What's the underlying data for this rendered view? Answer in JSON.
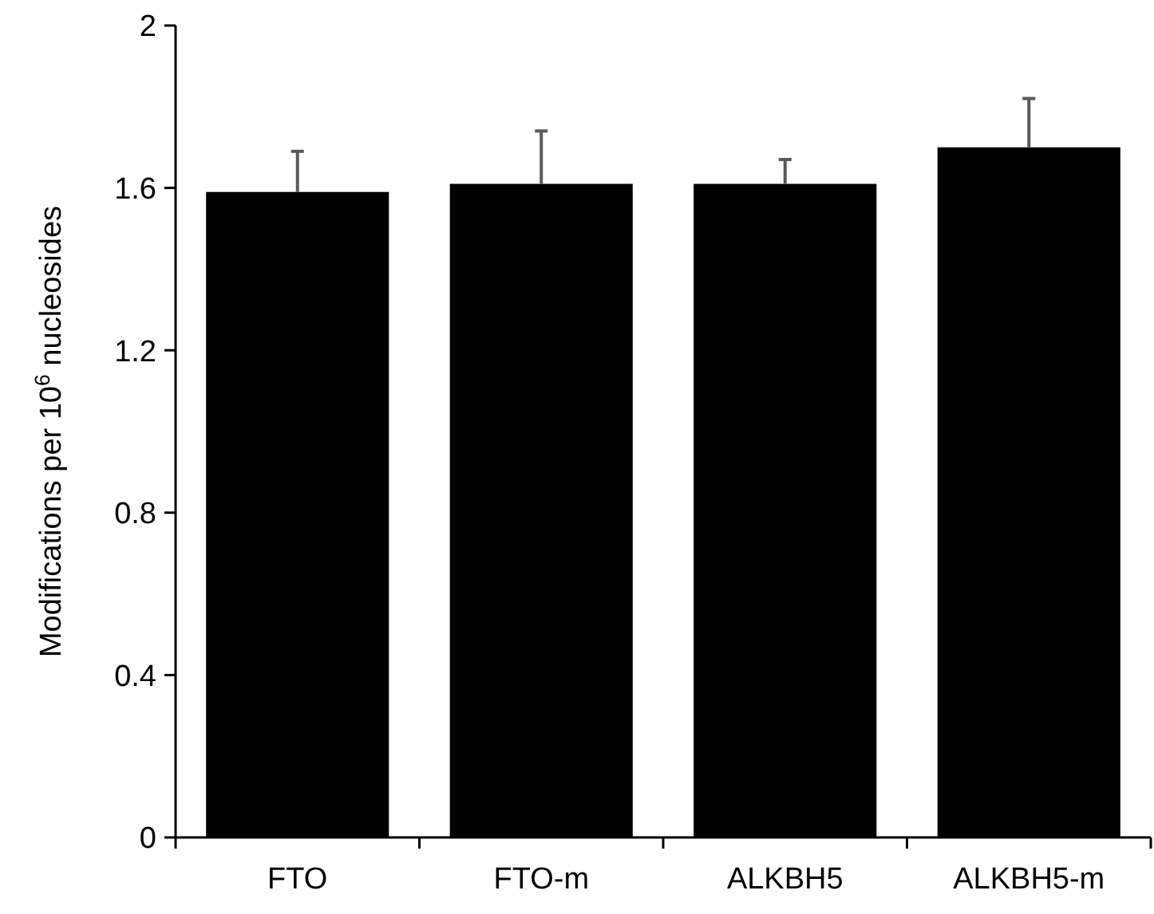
{
  "chart_data": {
    "type": "bar",
    "ylabel": "Modifications per 10$^{6}$ nucleosides",
    "categories": [
      "FTO",
      "FTO-m",
      "ALKBH5",
      "ALKBH5-m"
    ],
    "values": [
      1.59,
      1.61,
      1.61,
      1.7
    ],
    "color": "#000000",
    "errors": [
      [
        1.59,
        1.69
      ],
      [
        1.61,
        1.74
      ],
      [
        1.61,
        1.67
      ],
      [
        1.7,
        1.82
      ]
    ],
    "ylim": [
      0,
      2
    ],
    "yticks": [
      0,
      0.4,
      0.8,
      1.2,
      1.6,
      2
    ],
    "grid": false
  }
}
